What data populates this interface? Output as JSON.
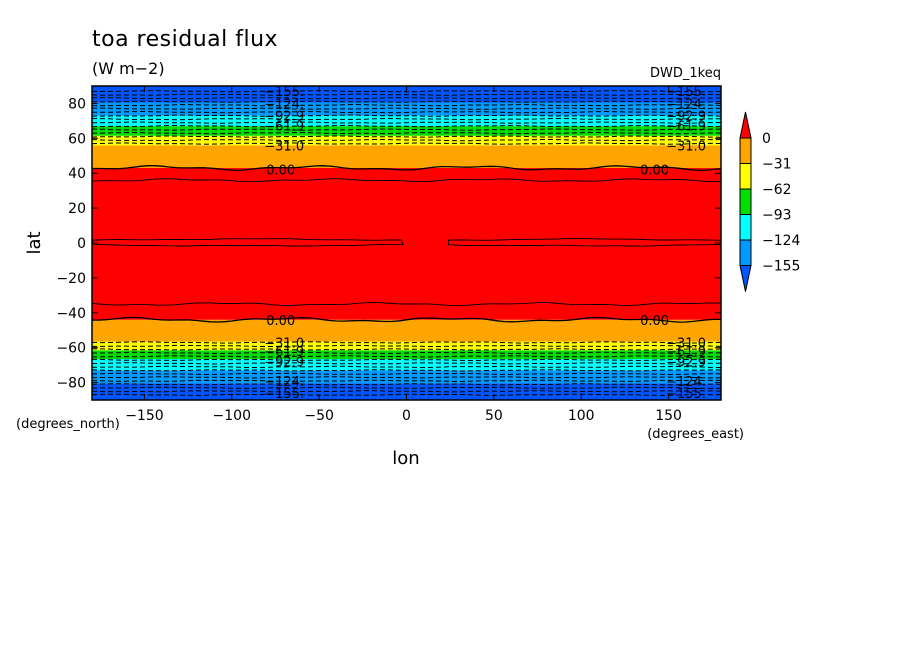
{
  "chart_data": {
    "type": "contour",
    "title": "toa residual flux",
    "units": "(W m−2)",
    "model": "DWD_1keq",
    "xlabel": "lon",
    "ylabel": "lat",
    "xunits": "(degrees_east)",
    "yunits": "(degrees_north)",
    "xlim": [
      -180,
      180
    ],
    "ylim": [
      -90,
      90
    ],
    "xticks": [
      -150,
      -100,
      -50,
      0,
      50,
      100,
      150
    ],
    "yticks": [
      -80,
      -60,
      -40,
      -20,
      0,
      20,
      40,
      60,
      80
    ],
    "xtick_labels": [
      "−150",
      "−100",
      "−50",
      "0",
      "50",
      "100",
      "150"
    ],
    "ytick_labels": [
      "−80",
      "−60",
      "−40",
      "−20",
      "0",
      "20",
      "40",
      "60",
      "80"
    ],
    "grid": false,
    "colorbar": {
      "labels": [
        "0",
        "−31",
        "−62",
        "−93",
        "−124",
        "−155"
      ],
      "colors": [
        "#ff0000",
        "#ffa500",
        "#ffff00",
        "#00dd00",
        "#00ffff",
        "#0099ff",
        "#0055ff"
      ],
      "placement": "right"
    },
    "bands": [
      {
        "from_lat": -90,
        "to_lat": -80.5,
        "color": "#0055ff"
      },
      {
        "from_lat": -80.5,
        "to_lat": -73,
        "color": "#0099ff"
      },
      {
        "from_lat": -73,
        "to_lat": -66.5,
        "color": "#00ffff"
      },
      {
        "from_lat": -66.5,
        "to_lat": -61.5,
        "color": "#00dd00"
      },
      {
        "from_lat": -61.5,
        "to_lat": -56.5,
        "color": "#ffff00"
      },
      {
        "from_lat": -56.5,
        "to_lat": -44,
        "color": "#ffa500"
      },
      {
        "from_lat": -44,
        "to_lat": 43,
        "color": "#ff0000"
      },
      {
        "from_lat": 43,
        "to_lat": 56,
        "color": "#ffa500"
      },
      {
        "from_lat": 56,
        "to_lat": 61.5,
        "color": "#ffff00"
      },
      {
        "from_lat": 61.5,
        "to_lat": 67,
        "color": "#00dd00"
      },
      {
        "from_lat": 67,
        "to_lat": 73,
        "color": "#00ffff"
      },
      {
        "from_lat": 73,
        "to_lat": 80.5,
        "color": "#0099ff"
      },
      {
        "from_lat": 80.5,
        "to_lat": 90,
        "color": "#0055ff"
      }
    ],
    "solid_contours": [
      {
        "lat": 43,
        "amp": 0.9
      },
      {
        "lat": -44,
        "amp": 0.9
      },
      {
        "lat": 36,
        "amp": 0.6
      },
      {
        "lat": -35,
        "amp": 0.6
      }
    ],
    "dashed_contours_lat": [
      57,
      59,
      61,
      63,
      65,
      67,
      69,
      71,
      73,
      75,
      77,
      79,
      81,
      83,
      85,
      87,
      -57,
      -59,
      -61,
      -63,
      -65,
      -67,
      -69,
      -71,
      -73,
      -75,
      -77,
      -79,
      -81,
      -83,
      -85,
      -87
    ],
    "contour_labels": [
      {
        "text": "−155.",
        "lon": -70,
        "lat": 87
      },
      {
        "text": "−124.",
        "lon": -70,
        "lat": 80
      },
      {
        "text": "−92.9",
        "lon": -70,
        "lat": 73
      },
      {
        "text": "−61.9",
        "lon": -70,
        "lat": 67.5
      },
      {
        "text": "−31.0",
        "lon": -70,
        "lat": 56
      },
      {
        "text": "0.00",
        "lon": -72,
        "lat": 42
      },
      {
        "text": "−155.",
        "lon": 160,
        "lat": 87
      },
      {
        "text": "−124.",
        "lon": 160,
        "lat": 80
      },
      {
        "text": "−92.9",
        "lon": 160,
        "lat": 73
      },
      {
        "text": "−61.9",
        "lon": 160,
        "lat": 67.5
      },
      {
        "text": "−31.0",
        "lon": 160,
        "lat": 56
      },
      {
        "text": "0.00",
        "lon": 142,
        "lat": 42
      },
      {
        "text": "0.00",
        "lon": -72,
        "lat": -44
      },
      {
        "text": "−31.0",
        "lon": -70,
        "lat": -57
      },
      {
        "text": "−61.9",
        "lon": -70,
        "lat": -62
      },
      {
        "text": "−92.9",
        "lon": -70,
        "lat": -68
      },
      {
        "text": "−124.",
        "lon": -70,
        "lat": -79
      },
      {
        "text": "−155.",
        "lon": -70,
        "lat": -86
      },
      {
        "text": "0.00",
        "lon": 142,
        "lat": -44
      },
      {
        "text": "−31.0",
        "lon": 160,
        "lat": -57
      },
      {
        "text": "−61.9",
        "lon": 160,
        "lat": -62
      },
      {
        "text": "−92.9",
        "lon": 160,
        "lat": -68
      },
      {
        "text": "−124.",
        "lon": 160,
        "lat": -79
      },
      {
        "text": "−155.",
        "lon": 160,
        "lat": -86
      }
    ]
  }
}
